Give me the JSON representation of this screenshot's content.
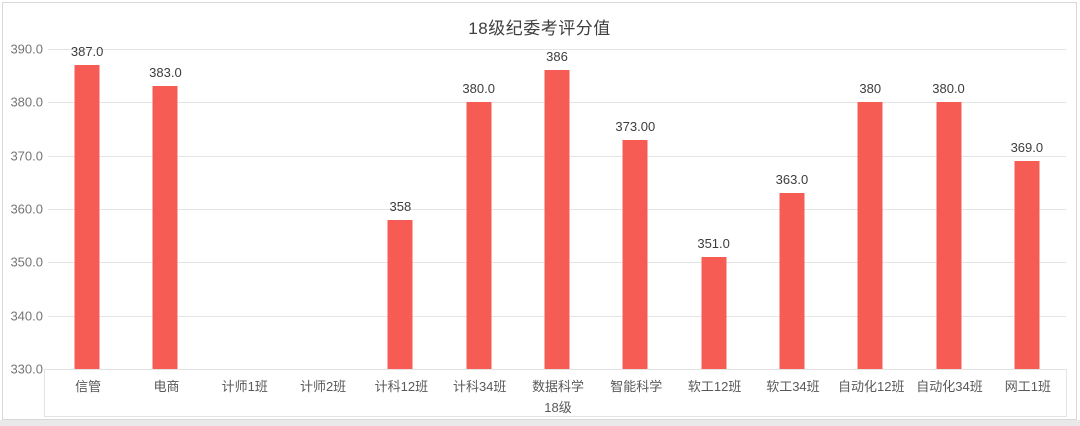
{
  "chart_data": {
    "type": "bar",
    "title": "18级纪委考评分值",
    "xlabel": "18级",
    "ylabel": "",
    "categories": [
      "信管",
      "电商",
      "计师1班",
      "计师2班",
      "计科12班",
      "计科34班",
      "数据科学",
      "智能科学",
      "软工12班",
      "软工34班",
      "自动化12班",
      "自动化34班",
      "网工1班"
    ],
    "values": [
      387.0,
      383.0,
      null,
      null,
      358,
      380.0,
      386,
      373.0,
      351.0,
      363.0,
      380,
      380.0,
      369.0
    ],
    "value_labels": [
      "387.0",
      "383.0",
      "",
      "",
      "358",
      "380.0",
      "386",
      "373.00",
      "351.0",
      "363.0",
      "380",
      "380.0",
      "369.0"
    ],
    "ylim": [
      330,
      390
    ],
    "y_ticks": [
      "390.0",
      "380.0",
      "370.0",
      "360.0",
      "350.0",
      "340.0",
      "330.0"
    ],
    "grid": true,
    "legend_position": "none",
    "bar_color": "#F65C54"
  },
  "colors": {
    "bar": "#F65C54",
    "gridline": "#E5E5E5",
    "axis_text": "#757575",
    "category_text": "#595959",
    "value_text": "#3D3D3D",
    "title_text": "#3F3F3F",
    "card_border": "#D8D8D8",
    "page_strip": "#E9E9E9"
  }
}
